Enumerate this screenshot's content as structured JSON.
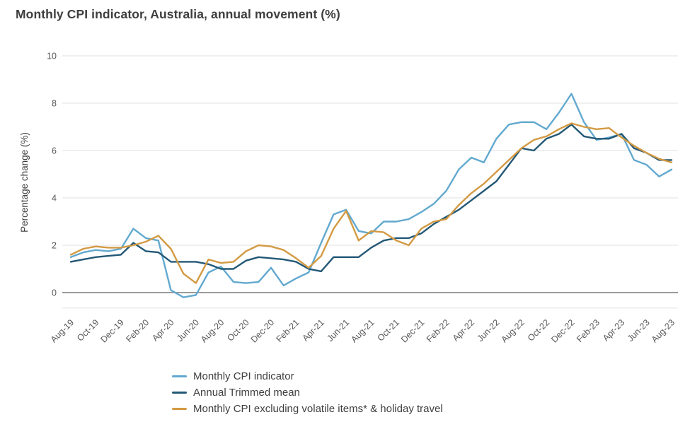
{
  "chart_data": {
    "type": "line",
    "title": "Monthly CPI indicator, Australia, annual movement (%)",
    "xlabel": "",
    "ylabel": "Percentage change (%)",
    "ylim": [
      -0.65,
      10
    ],
    "yticks": [
      0,
      2,
      4,
      6,
      8,
      10
    ],
    "grid": "horizontal",
    "legend_position": "bottom",
    "x_tick_every": 2,
    "x": [
      "Aug-19",
      "Sep-19",
      "Oct-19",
      "Nov-19",
      "Dec-19",
      "Jan-20",
      "Feb-20",
      "Mar-20",
      "Apr-20",
      "May-20",
      "Jun-20",
      "Jul-20",
      "Aug-20",
      "Sep-20",
      "Oct-20",
      "Nov-20",
      "Dec-20",
      "Jan-21",
      "Feb-21",
      "Mar-21",
      "Apr-21",
      "May-21",
      "Jun-21",
      "Jul-21",
      "Aug-21",
      "Sep-21",
      "Oct-21",
      "Nov-21",
      "Dec-21",
      "Jan-22",
      "Feb-22",
      "Mar-22",
      "Apr-22",
      "May-22",
      "Jun-22",
      "Jul-22",
      "Aug-22",
      "Sep-22",
      "Oct-22",
      "Nov-22",
      "Dec-22",
      "Jan-23",
      "Feb-23",
      "Mar-23",
      "Apr-23",
      "May-23",
      "Jun-23",
      "Jul-23",
      "Aug-23"
    ],
    "series": [
      {
        "name": "Monthly CPI indicator",
        "color": "#62a9cf",
        "values": [
          1.5,
          1.7,
          1.8,
          1.75,
          1.85,
          2.7,
          2.3,
          2.2,
          0.1,
          -0.2,
          -0.1,
          0.85,
          1.1,
          0.45,
          0.4,
          0.45,
          1.05,
          0.3,
          0.6,
          0.85,
          2.1,
          3.3,
          3.5,
          2.6,
          2.5,
          3.0,
          3.0,
          3.1,
          3.4,
          3.75,
          4.3,
          5.2,
          5.7,
          5.5,
          6.5,
          7.1,
          7.2,
          7.2,
          6.9,
          7.6,
          8.4,
          7.2,
          6.45,
          6.55,
          6.7,
          5.6,
          5.4,
          4.9,
          5.2
        ]
      },
      {
        "name": "Annual Trimmed mean",
        "color": "#235876",
        "values": [
          1.3,
          1.4,
          1.5,
          1.55,
          1.6,
          2.1,
          1.75,
          1.7,
          1.3,
          1.3,
          1.3,
          1.2,
          1.0,
          1.0,
          1.35,
          1.5,
          1.45,
          1.4,
          1.3,
          1.0,
          0.9,
          1.5,
          1.5,
          1.5,
          1.9,
          2.2,
          2.3,
          2.3,
          2.5,
          2.9,
          3.2,
          3.5,
          3.9,
          4.3,
          4.7,
          5.4,
          6.1,
          6.0,
          6.5,
          6.7,
          7.1,
          6.6,
          6.5,
          6.5,
          6.7,
          6.1,
          5.9,
          5.6,
          5.6
        ]
      },
      {
        "name": "Monthly CPI excluding volatile items* & holiday travel",
        "color": "#d39a43",
        "values": [
          1.6,
          1.85,
          1.95,
          1.9,
          1.9,
          2.0,
          2.15,
          2.4,
          1.85,
          0.8,
          0.4,
          1.4,
          1.25,
          1.3,
          1.75,
          2.0,
          1.95,
          1.8,
          1.45,
          1.05,
          1.55,
          2.7,
          3.45,
          2.2,
          2.6,
          2.55,
          2.2,
          2.0,
          2.7,
          3.0,
          3.1,
          3.7,
          4.2,
          4.6,
          5.1,
          5.6,
          6.1,
          6.45,
          6.6,
          6.9,
          7.15,
          7.0,
          6.9,
          6.95,
          6.55,
          6.2,
          5.9,
          5.65,
          5.5
        ]
      }
    ],
    "colors": {
      "tick_text": "#595959",
      "title_text": "#3e3e3e",
      "axis_title_text": "#3f3f3f",
      "gridline": "#e8e8e8",
      "zero_line": "#9b9b9b",
      "background": "#ffffff"
    }
  }
}
